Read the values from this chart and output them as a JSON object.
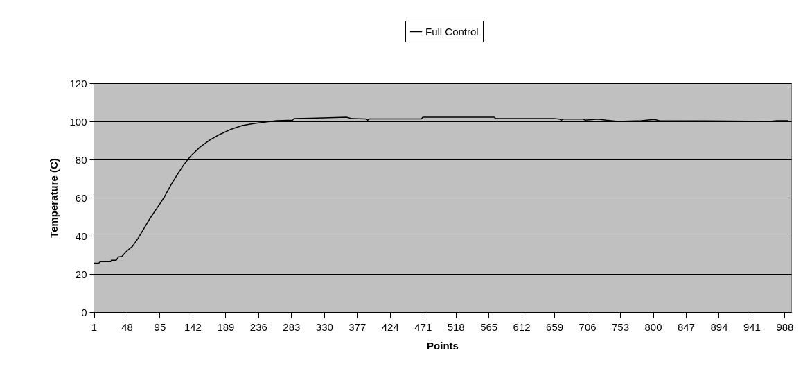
{
  "chart_data": {
    "type": "line",
    "xlabel": "Points",
    "ylabel": "Temperature (C)",
    "xlim": [
      0.5,
      997.5
    ],
    "ylim": [
      0,
      120
    ],
    "xticks": [
      1,
      48,
      95,
      142,
      189,
      236,
      283,
      330,
      377,
      424,
      471,
      518,
      565,
      612,
      659,
      706,
      753,
      800,
      847,
      894,
      941,
      988
    ],
    "yticks": [
      0,
      20,
      40,
      60,
      80,
      100,
      120
    ],
    "grid": "y",
    "legend": "top",
    "series": [
      {
        "name": "Full Control",
        "color": "#000000",
        "x": [
          1,
          8,
          10,
          25,
          26,
          33,
          36,
          41,
          48,
          56,
          64,
          71,
          81,
          91,
          101,
          111,
          120,
          130,
          140,
          153,
          167,
          180,
          196,
          213,
          229,
          246,
          262,
          285,
          287,
          312,
          362,
          369,
          389,
          392,
          395,
          469,
          471,
          573,
          575,
          659,
          666,
          669,
          672,
          700,
          703,
          721,
          733,
          750,
          783,
          802,
          809,
          941,
          967,
          977,
          993
        ],
        "values": [
          25.6,
          25.6,
          26.5,
          26.5,
          27.2,
          27.2,
          28.9,
          29.2,
          32,
          34.4,
          38.6,
          42.9,
          49,
          54.4,
          59.9,
          66.6,
          72,
          77.5,
          82.1,
          86.6,
          90.3,
          93,
          95.7,
          97.8,
          98.8,
          99.6,
          100.4,
          100.6,
          101.5,
          101.6,
          102.2,
          101.5,
          101.3,
          100.6,
          101.3,
          101.3,
          102.2,
          102.2,
          101.5,
          101.5,
          101.2,
          100.6,
          101.2,
          101.2,
          100.6,
          101.2,
          100.6,
          100,
          100.4,
          101,
          100.4,
          100.1,
          100,
          100.4,
          100.4
        ]
      }
    ]
  }
}
